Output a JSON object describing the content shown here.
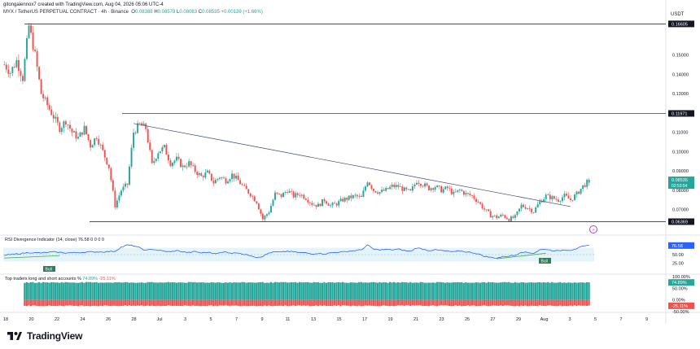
{
  "header": {
    "credit": "gitongaiennox7 created with TradingView.com, Aug 04, 2026 05:06 UTC-4",
    "symbol": "MYX / TetherUS PERPETUAL CONTRACT · 4h · Binance",
    "ohlc": {
      "o_label": "O",
      "o": "0.08388",
      "h_label": "H",
      "h": "0.08578",
      "l_label": "L",
      "l": "0.08083",
      "c_label": "C",
      "c": "0.08535",
      "change": "+0.00139 (+1.66%)"
    }
  },
  "currency": "USDT",
  "colors": {
    "up": "#26a69a",
    "down": "#ef5350",
    "rsi_line": "#2962ff",
    "rsi_band": "#e3f4fb",
    "label_dark": "#131722",
    "bull": "#4caf50",
    "trend_line": "#3a4a6b"
  },
  "price_tags": {
    "last": "0.08535",
    "countdown": "02:53:54",
    "top_level": "0.16605",
    "resistance": "0.11971",
    "support": "0.06369"
  },
  "rsi": {
    "title": "RSI Divergence Indicator (14, close)",
    "value_display": "76.58",
    "placeholders": "0 0 0 0",
    "axis_labels": [
      "50.00",
      "25.00"
    ],
    "current": "76.58",
    "bull_labels": [
      "Bull",
      "Bull"
    ]
  },
  "long_short": {
    "title": "Top traders long and short accounts %",
    "long_display": "74.89%",
    "short_display": "-25.11%",
    "axis_labels": [
      "100.00%",
      "50.00%",
      "0.00%",
      "-50.00%"
    ]
  },
  "chart_data": {
    "type": "candlestick",
    "timeframe": "4h",
    "ylim": [
      0.058,
      0.17
    ],
    "y_ticks": [
      "0.15000",
      "0.14000",
      "0.13000",
      "0.12000",
      "0.11000",
      "0.10000",
      "0.09000",
      "0.08000",
      "0.07000"
    ],
    "y_tick_values": [
      0.15,
      0.14,
      0.13,
      0.12,
      0.11,
      0.1,
      0.09,
      0.08,
      0.07
    ],
    "x_ticks": [
      "18",
      "20",
      "22",
      "24",
      "26",
      "28",
      "Jul",
      "3",
      "5",
      "7",
      "9",
      "11",
      "13",
      "15",
      "17",
      "19",
      "21",
      "23",
      "25",
      "27",
      "29",
      "Aug",
      "3",
      "5",
      "7",
      "9"
    ],
    "close_path": [
      [
        0,
        0.145
      ],
      [
        3,
        0.141
      ],
      [
        6,
        0.147
      ],
      [
        9,
        0.138
      ],
      [
        12,
        0.165
      ],
      [
        15,
        0.15
      ],
      [
        18,
        0.13
      ],
      [
        21,
        0.124
      ],
      [
        24,
        0.118
      ],
      [
        27,
        0.112
      ],
      [
        30,
        0.116
      ],
      [
        33,
        0.11
      ],
      [
        36,
        0.107
      ],
      [
        39,
        0.112
      ],
      [
        42,
        0.103
      ],
      [
        45,
        0.108
      ],
      [
        48,
        0.1
      ],
      [
        51,
        0.092
      ],
      [
        54,
        0.072
      ],
      [
        57,
        0.08
      ],
      [
        60,
        0.083
      ],
      [
        63,
        0.11
      ],
      [
        66,
        0.114
      ],
      [
        69,
        0.112
      ],
      [
        72,
        0.093
      ],
      [
        75,
        0.1
      ],
      [
        78,
        0.102
      ],
      [
        81,
        0.094
      ],
      [
        84,
        0.096
      ],
      [
        87,
        0.092
      ],
      [
        90,
        0.094
      ],
      [
        93,
        0.09
      ],
      [
        96,
        0.087
      ],
      [
        99,
        0.089
      ],
      [
        102,
        0.084
      ],
      [
        105,
        0.087
      ],
      [
        108,
        0.085
      ],
      [
        111,
        0.088
      ],
      [
        114,
        0.085
      ],
      [
        117,
        0.081
      ],
      [
        120,
        0.078
      ],
      [
        123,
        0.074
      ],
      [
        126,
        0.065
      ],
      [
        129,
        0.069
      ],
      [
        132,
        0.078
      ],
      [
        135,
        0.077
      ],
      [
        138,
        0.08
      ],
      [
        141,
        0.077
      ],
      [
        144,
        0.078
      ],
      [
        147,
        0.076
      ],
      [
        150,
        0.073
      ],
      [
        153,
        0.072
      ],
      [
        156,
        0.075
      ],
      [
        159,
        0.072
      ],
      [
        162,
        0.073
      ],
      [
        165,
        0.075
      ],
      [
        168,
        0.076
      ],
      [
        171,
        0.077
      ],
      [
        174,
        0.076
      ],
      [
        177,
        0.085
      ],
      [
        180,
        0.08
      ],
      [
        183,
        0.079
      ],
      [
        186,
        0.08
      ],
      [
        189,
        0.082
      ],
      [
        192,
        0.082
      ],
      [
        195,
        0.08
      ],
      [
        198,
        0.079
      ],
      [
        201,
        0.085
      ],
      [
        204,
        0.083
      ],
      [
        207,
        0.081
      ],
      [
        210,
        0.082
      ],
      [
        213,
        0.08
      ],
      [
        216,
        0.081
      ],
      [
        219,
        0.078
      ],
      [
        222,
        0.08
      ],
      [
        225,
        0.078
      ],
      [
        228,
        0.077
      ],
      [
        231,
        0.074
      ],
      [
        234,
        0.07
      ],
      [
        237,
        0.067
      ],
      [
        240,
        0.066
      ],
      [
        243,
        0.067
      ],
      [
        246,
        0.065
      ],
      [
        249,
        0.066
      ],
      [
        252,
        0.072
      ],
      [
        255,
        0.071
      ],
      [
        258,
        0.069
      ],
      [
        261,
        0.074
      ],
      [
        264,
        0.077
      ],
      [
        267,
        0.076
      ],
      [
        270,
        0.075
      ],
      [
        273,
        0.077
      ],
      [
        276,
        0.075
      ],
      [
        279,
        0.078
      ],
      [
        282,
        0.082
      ],
      [
        285,
        0.085
      ]
    ],
    "resistance": 0.11971,
    "support": 0.06369,
    "top_level": 0.16605,
    "trendline": [
      [
        63,
        0.1145
      ],
      [
        276,
        0.0715
      ]
    ],
    "rsi_values": [
      [
        0,
        48
      ],
      [
        6,
        52
      ],
      [
        12,
        56
      ],
      [
        18,
        55
      ],
      [
        24,
        58
      ],
      [
        30,
        55
      ],
      [
        36,
        56
      ],
      [
        42,
        58
      ],
      [
        48,
        58
      ],
      [
        54,
        60
      ],
      [
        57,
        72
      ],
      [
        60,
        78
      ],
      [
        63,
        76
      ],
      [
        66,
        70
      ],
      [
        69,
        62
      ],
      [
        72,
        66
      ],
      [
        75,
        63
      ],
      [
        78,
        60
      ],
      [
        81,
        58
      ],
      [
        84,
        62
      ],
      [
        87,
        58
      ],
      [
        90,
        56
      ],
      [
        93,
        59
      ],
      [
        96,
        55
      ],
      [
        99,
        57
      ],
      [
        102,
        54
      ],
      [
        105,
        55
      ],
      [
        108,
        58
      ],
      [
        111,
        54
      ],
      [
        114,
        56
      ],
      [
        117,
        50
      ],
      [
        120,
        48
      ],
      [
        123,
        42
      ],
      [
        126,
        45
      ],
      [
        129,
        55
      ],
      [
        132,
        58
      ],
      [
        135,
        57
      ],
      [
        138,
        60
      ],
      [
        141,
        58
      ],
      [
        144,
        56
      ],
      [
        147,
        55
      ],
      [
        150,
        52
      ],
      [
        153,
        54
      ],
      [
        156,
        52
      ],
      [
        159,
        55
      ],
      [
        162,
        57
      ],
      [
        165,
        58
      ],
      [
        168,
        60
      ],
      [
        171,
        62
      ],
      [
        174,
        64
      ],
      [
        177,
        78
      ],
      [
        180,
        66
      ],
      [
        183,
        64
      ],
      [
        186,
        65
      ],
      [
        189,
        64
      ],
      [
        192,
        66
      ],
      [
        195,
        62
      ],
      [
        198,
        60
      ],
      [
        201,
        70
      ],
      [
        204,
        66
      ],
      [
        207,
        62
      ],
      [
        210,
        64
      ],
      [
        213,
        62
      ],
      [
        216,
        60
      ],
      [
        219,
        58
      ],
      [
        222,
        61
      ],
      [
        225,
        58
      ],
      [
        228,
        56
      ],
      [
        231,
        52
      ],
      [
        234,
        45
      ],
      [
        237,
        42
      ],
      [
        240,
        40
      ],
      [
        243,
        44
      ],
      [
        246,
        46
      ],
      [
        249,
        48
      ],
      [
        252,
        58
      ],
      [
        255,
        56
      ],
      [
        258,
        54
      ],
      [
        261,
        64
      ],
      [
        264,
        66
      ],
      [
        267,
        62
      ],
      [
        270,
        61
      ],
      [
        273,
        64
      ],
      [
        276,
        63
      ],
      [
        279,
        68
      ],
      [
        282,
        74
      ],
      [
        285,
        76.58
      ]
    ],
    "rsi_band": [
      30,
      70
    ],
    "long_pct": 74.89,
    "short_pct": -25.11
  }
}
